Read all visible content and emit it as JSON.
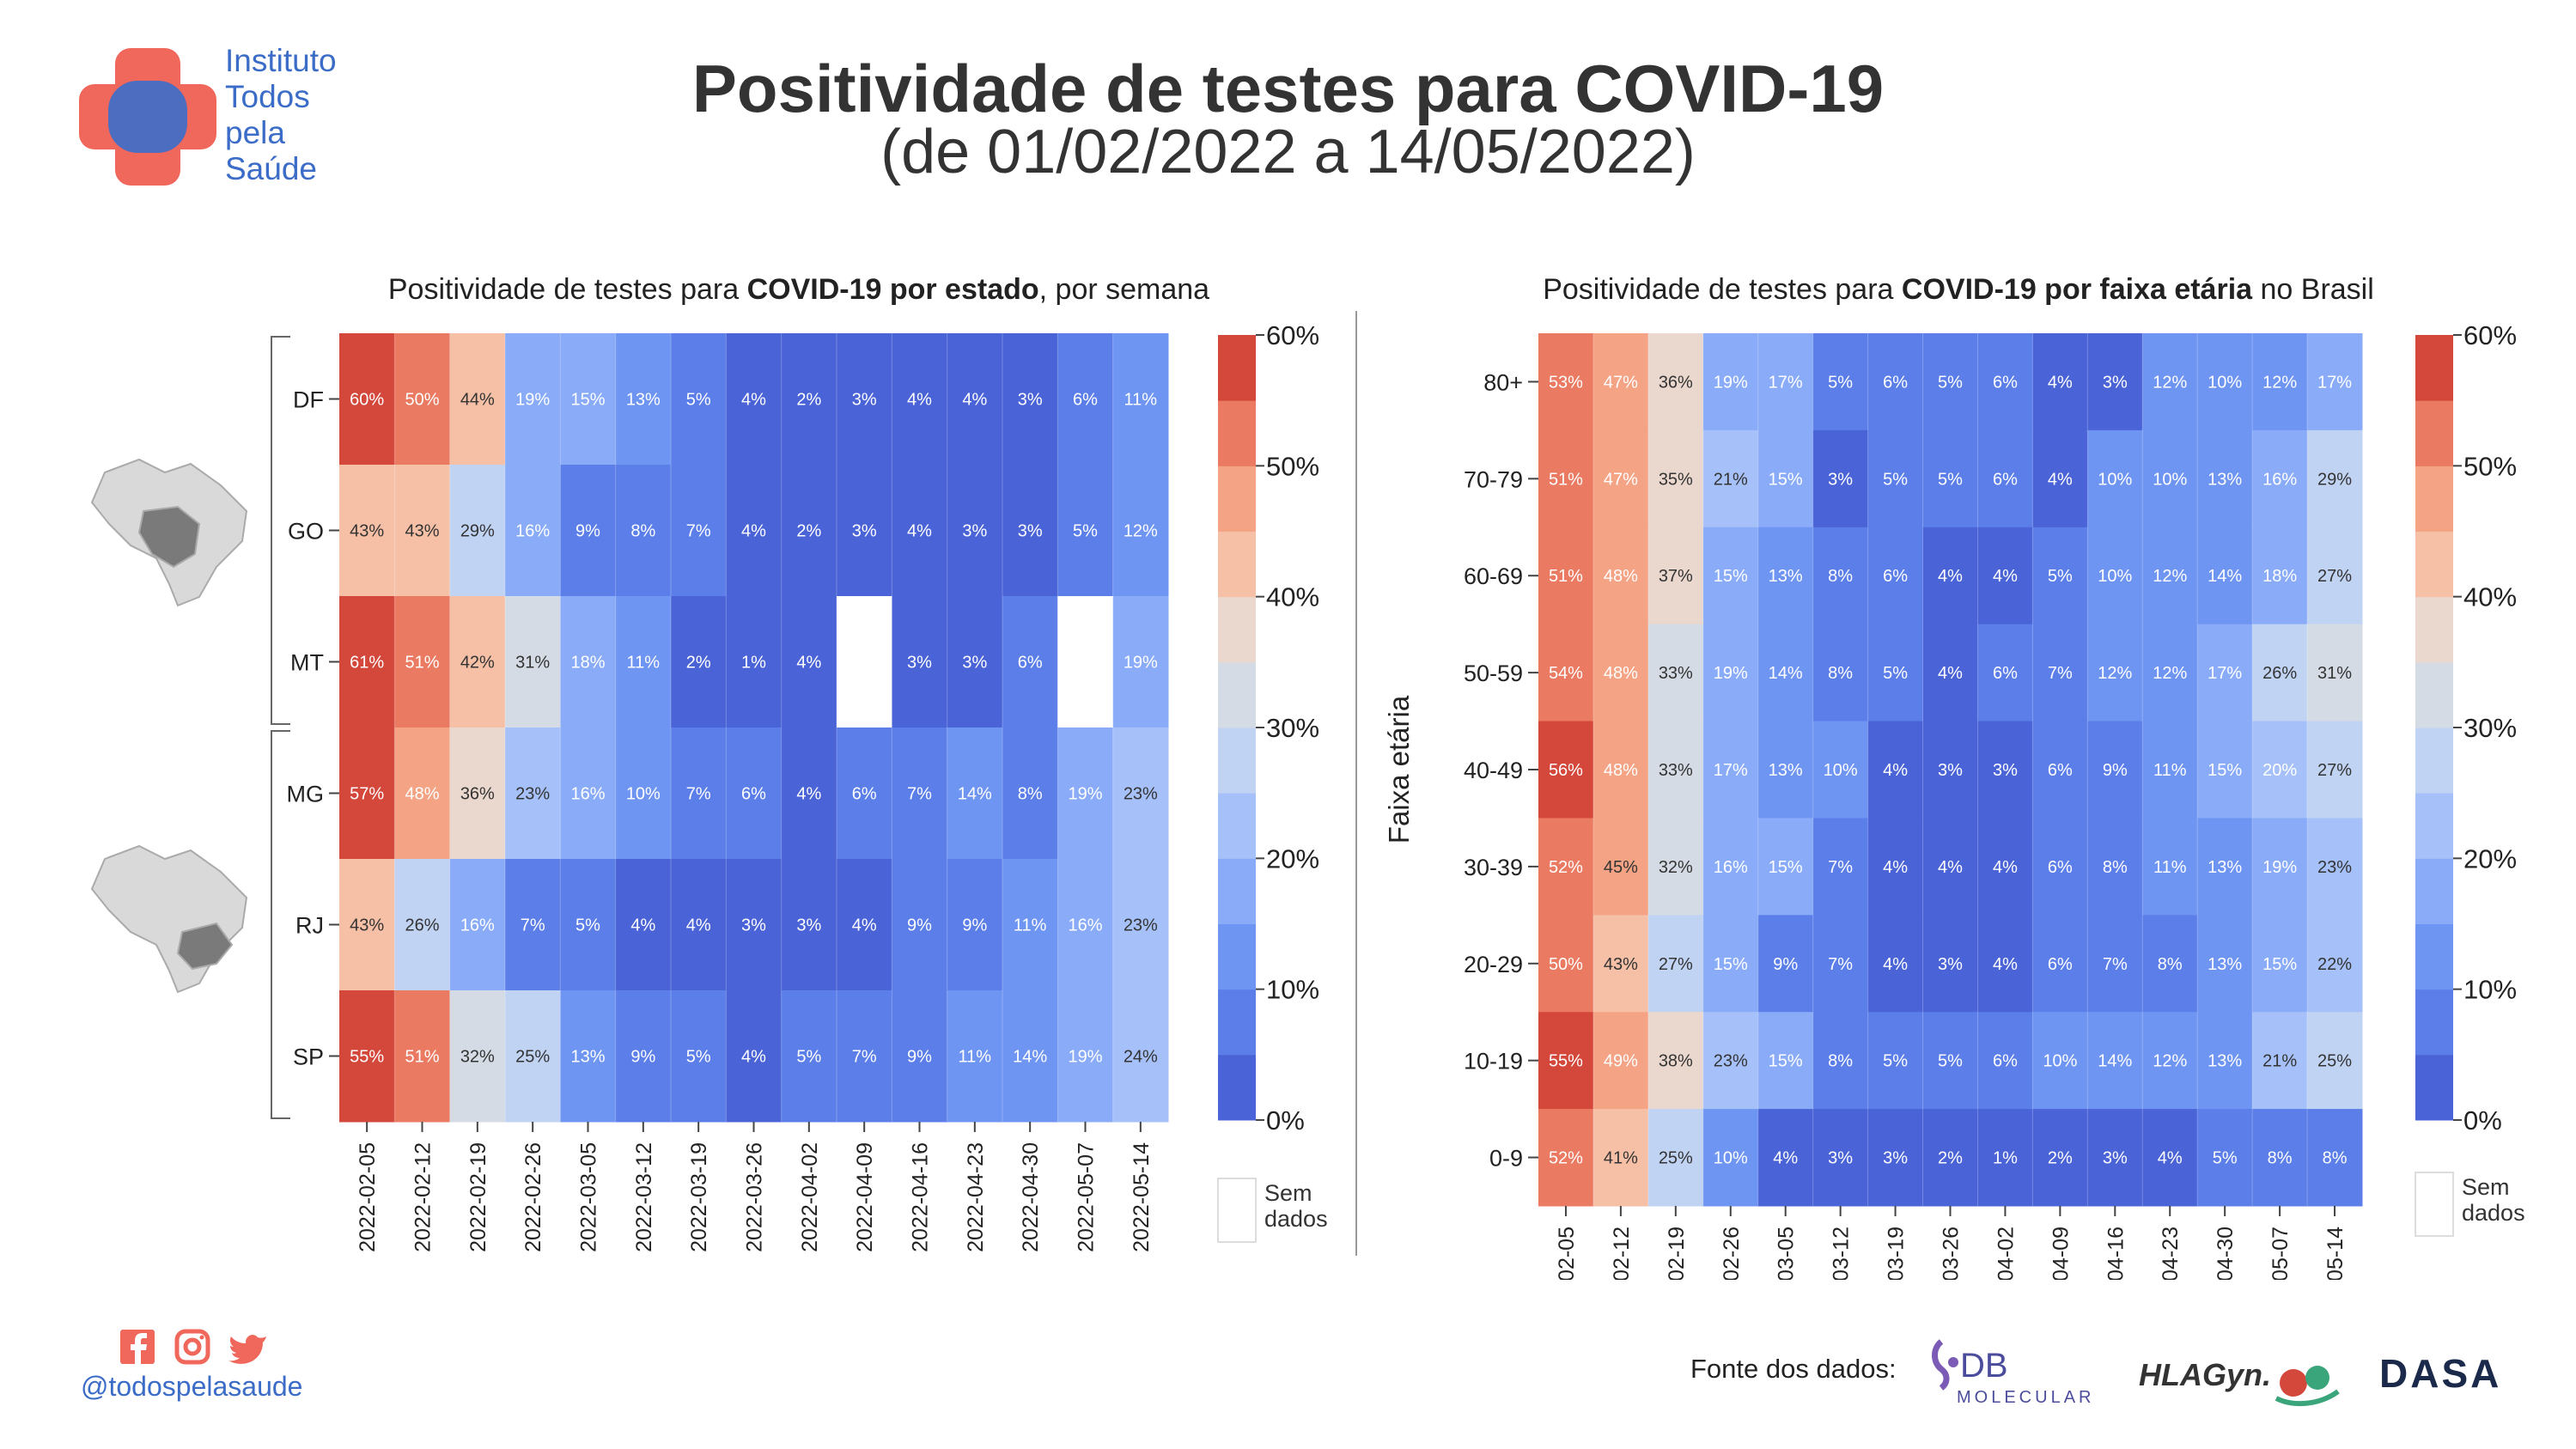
{
  "header": {
    "title": "Positividade de testes para COVID-19",
    "subtitle": "(de 01/02/2022 a 14/05/2022)"
  },
  "logo": {
    "lines": [
      "Instituto",
      "Todos",
      "pela",
      "Saúde"
    ],
    "colors": {
      "red": "#f0675b",
      "blue": "#3f6fc9"
    }
  },
  "colors": {
    "scale": [
      "#4a63d6",
      "#5b7ee9",
      "#6f95f2",
      "#8aacf8",
      "#a6c1f9",
      "#c0d3f3",
      "#d5dbe4",
      "#ead7cd",
      "#f5c0a6",
      "#f4a384",
      "#ea7a62",
      "#d4473b"
    ],
    "no_data": "#ffffff"
  },
  "chart_data": [
    {
      "type": "heatmap",
      "title": "Positividade de testes para COVID-19 por estado, por semana",
      "title_parts": [
        "Positividade de testes para ",
        "COVID-19 por estado",
        ", por semana"
      ],
      "x": [
        "2022-02-05",
        "2022-02-12",
        "2022-02-19",
        "2022-02-26",
        "2022-03-05",
        "2022-03-12",
        "2022-03-19",
        "2022-03-26",
        "2022-04-02",
        "2022-04-09",
        "2022-04-16",
        "2022-04-23",
        "2022-04-30",
        "2022-05-07",
        "2022-05-14"
      ],
      "y": [
        "DF",
        "GO",
        "MT",
        "MG",
        "RJ",
        "SP"
      ],
      "values": [
        [
          60,
          50,
          44,
          19,
          15,
          13,
          5,
          4,
          2,
          3,
          4,
          4,
          3,
          6,
          11
        ],
        [
          43,
          43,
          29,
          16,
          9,
          8,
          7,
          4,
          2,
          3,
          4,
          3,
          3,
          5,
          12
        ],
        [
          61,
          51,
          42,
          31,
          18,
          11,
          2,
          1,
          4,
          null,
          3,
          3,
          6,
          null,
          19
        ],
        [
          57,
          48,
          36,
          23,
          16,
          10,
          7,
          6,
          4,
          6,
          7,
          14,
          8,
          19,
          23
        ],
        [
          43,
          26,
          16,
          7,
          5,
          4,
          4,
          3,
          3,
          4,
          9,
          9,
          11,
          16,
          23
        ],
        [
          55,
          51,
          32,
          25,
          13,
          9,
          5,
          4,
          5,
          7,
          9,
          11,
          14,
          19,
          24
        ]
      ],
      "groups": [
        [
          "DF",
          "GO",
          "MT"
        ],
        [
          "MG",
          "RJ",
          "SP"
        ]
      ],
      "value_suffix": "%",
      "ylabel": "",
      "colorbar": {
        "ticks": [
          "0%",
          "10%",
          "20%",
          "30%",
          "40%",
          "50%",
          "60%"
        ],
        "range": [
          0,
          60
        ]
      },
      "no_data_label": [
        "Sem",
        "dados"
      ]
    },
    {
      "type": "heatmap",
      "title": "Positividade de testes para COVID-19 por faixa etária no Brasil",
      "title_parts": [
        "Positividade de testes para ",
        "COVID-19 por faixa etária",
        " no Brasil"
      ],
      "x": [
        "2022-02-05",
        "2022-02-12",
        "2022-02-19",
        "2022-02-26",
        "2022-03-05",
        "2022-03-12",
        "2022-03-19",
        "2022-03-26",
        "2022-04-02",
        "2022-04-09",
        "2022-04-16",
        "2022-04-23",
        "2022-04-30",
        "2022-05-07",
        "2022-05-14"
      ],
      "y": [
        "80+",
        "70-79",
        "60-69",
        "50-59",
        "40-49",
        "30-39",
        "20-29",
        "10-19",
        "0-9"
      ],
      "values": [
        [
          53,
          47,
          36,
          19,
          17,
          5,
          6,
          5,
          6,
          4,
          3,
          12,
          10,
          12,
          17
        ],
        [
          51,
          47,
          35,
          21,
          15,
          3,
          5,
          5,
          6,
          4,
          10,
          10,
          13,
          16,
          29
        ],
        [
          51,
          48,
          37,
          15,
          13,
          8,
          6,
          4,
          4,
          5,
          10,
          12,
          14,
          18,
          27
        ],
        [
          54,
          48,
          33,
          19,
          14,
          8,
          5,
          4,
          6,
          7,
          12,
          12,
          17,
          26,
          31
        ],
        [
          56,
          48,
          33,
          17,
          13,
          10,
          4,
          3,
          3,
          6,
          9,
          11,
          15,
          20,
          27
        ],
        [
          52,
          45,
          32,
          16,
          15,
          7,
          4,
          4,
          4,
          6,
          8,
          11,
          13,
          19,
          23
        ],
        [
          50,
          43,
          27,
          15,
          9,
          7,
          4,
          3,
          4,
          6,
          7,
          8,
          13,
          15,
          22
        ],
        [
          55,
          49,
          38,
          23,
          15,
          8,
          5,
          5,
          6,
          10,
          14,
          12,
          13,
          21,
          25
        ],
        [
          52,
          41,
          25,
          10,
          4,
          3,
          3,
          2,
          1,
          2,
          3,
          4,
          5,
          8,
          8
        ]
      ],
      "value_suffix": "%",
      "ylabel": "Faixa etária",
      "colorbar": {
        "ticks": [
          "0%",
          "10%",
          "20%",
          "30%",
          "40%",
          "50%",
          "60%"
        ],
        "range": [
          0,
          60
        ]
      },
      "no_data_label": [
        "Sem",
        "dados"
      ]
    }
  ],
  "footer": {
    "social_handle": "@todospelasaude",
    "social_icons": [
      "facebook-icon",
      "instagram-icon",
      "twitter-icon"
    ],
    "source_label": "Fonte dos dados:",
    "partners": {
      "db": "DB",
      "db_sub": "MOLECULAR",
      "hla": "HLAGyn.",
      "dasa": "DASA"
    }
  }
}
